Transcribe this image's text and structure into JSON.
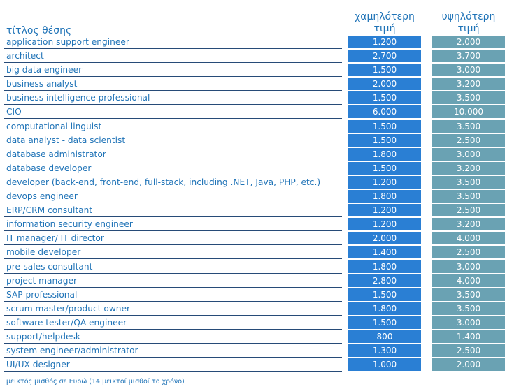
{
  "header": {
    "title": "τίτλος θέσης",
    "low_line1": "χαμηλότερη",
    "low_line2": "τιμή",
    "high_line1": "υψηλότερη",
    "high_line2": "τιμή"
  },
  "rows": [
    {
      "title": "application support engineer",
      "low": "1.200",
      "high": "2.000"
    },
    {
      "title": "architect",
      "low": "2.700",
      "high": "3.700"
    },
    {
      "title": "big data engineer",
      "low": "1.500",
      "high": "3.000"
    },
    {
      "title": "business analyst",
      "low": "2.000",
      "high": "3.200"
    },
    {
      "title": "business intelligence professional",
      "low": "1.500",
      "high": "3.500"
    },
    {
      "title": "CIO",
      "low": "6.000",
      "high": "10.000"
    },
    {
      "title": "computational linguist",
      "low": "1.500",
      "high": "3.500"
    },
    {
      "title": "data analyst - data scientist",
      "low": "1.500",
      "high": "2.500"
    },
    {
      "title": "database administrator",
      "low": "1.800",
      "high": "3.000"
    },
    {
      "title": "database developer",
      "low": "1.500",
      "high": "3.200"
    },
    {
      "title": "developer (back-end, front-end, full-stack, including .NET, Java, PHP, etc.)",
      "low": "1.200",
      "high": "3.500"
    },
    {
      "title": "devops engineer",
      "low": "1.800",
      "high": "3.500"
    },
    {
      "title": "ERP/CRM consultant",
      "low": "1.200",
      "high": "2.500"
    },
    {
      "title": "information security engineer",
      "low": "1.200",
      "high": "3.200"
    },
    {
      "title": "IT manager/ IT director",
      "low": "2.000",
      "high": "4.000"
    },
    {
      "title": "mobile developer",
      "low": "1.400",
      "high": "2.500"
    },
    {
      "title": "pre-sales consultant",
      "low": "1.800",
      "high": "3.000"
    },
    {
      "title": "project manager",
      "low": "2.800",
      "high": "4.000"
    },
    {
      "title": "SAP professional",
      "low": "1.500",
      "high": "3.500"
    },
    {
      "title": "scrum master/product owner",
      "low": "1.800",
      "high": "3.500"
    },
    {
      "title": "software tester/QA engineer",
      "low": "1.500",
      "high": "3.000"
    },
    {
      "title": "support/helpdesk",
      "low": "800",
      "high": "1.400"
    },
    {
      "title": "system engineer/administrator",
      "low": "1.300",
      "high": "2.500"
    },
    {
      "title": "UI/UX designer",
      "low": "1.000",
      "high": "2.000"
    }
  ],
  "footnote": "μεικτός μισθός σε Ευρώ (14 μεικτοί μισθοί το χρόνο)"
}
